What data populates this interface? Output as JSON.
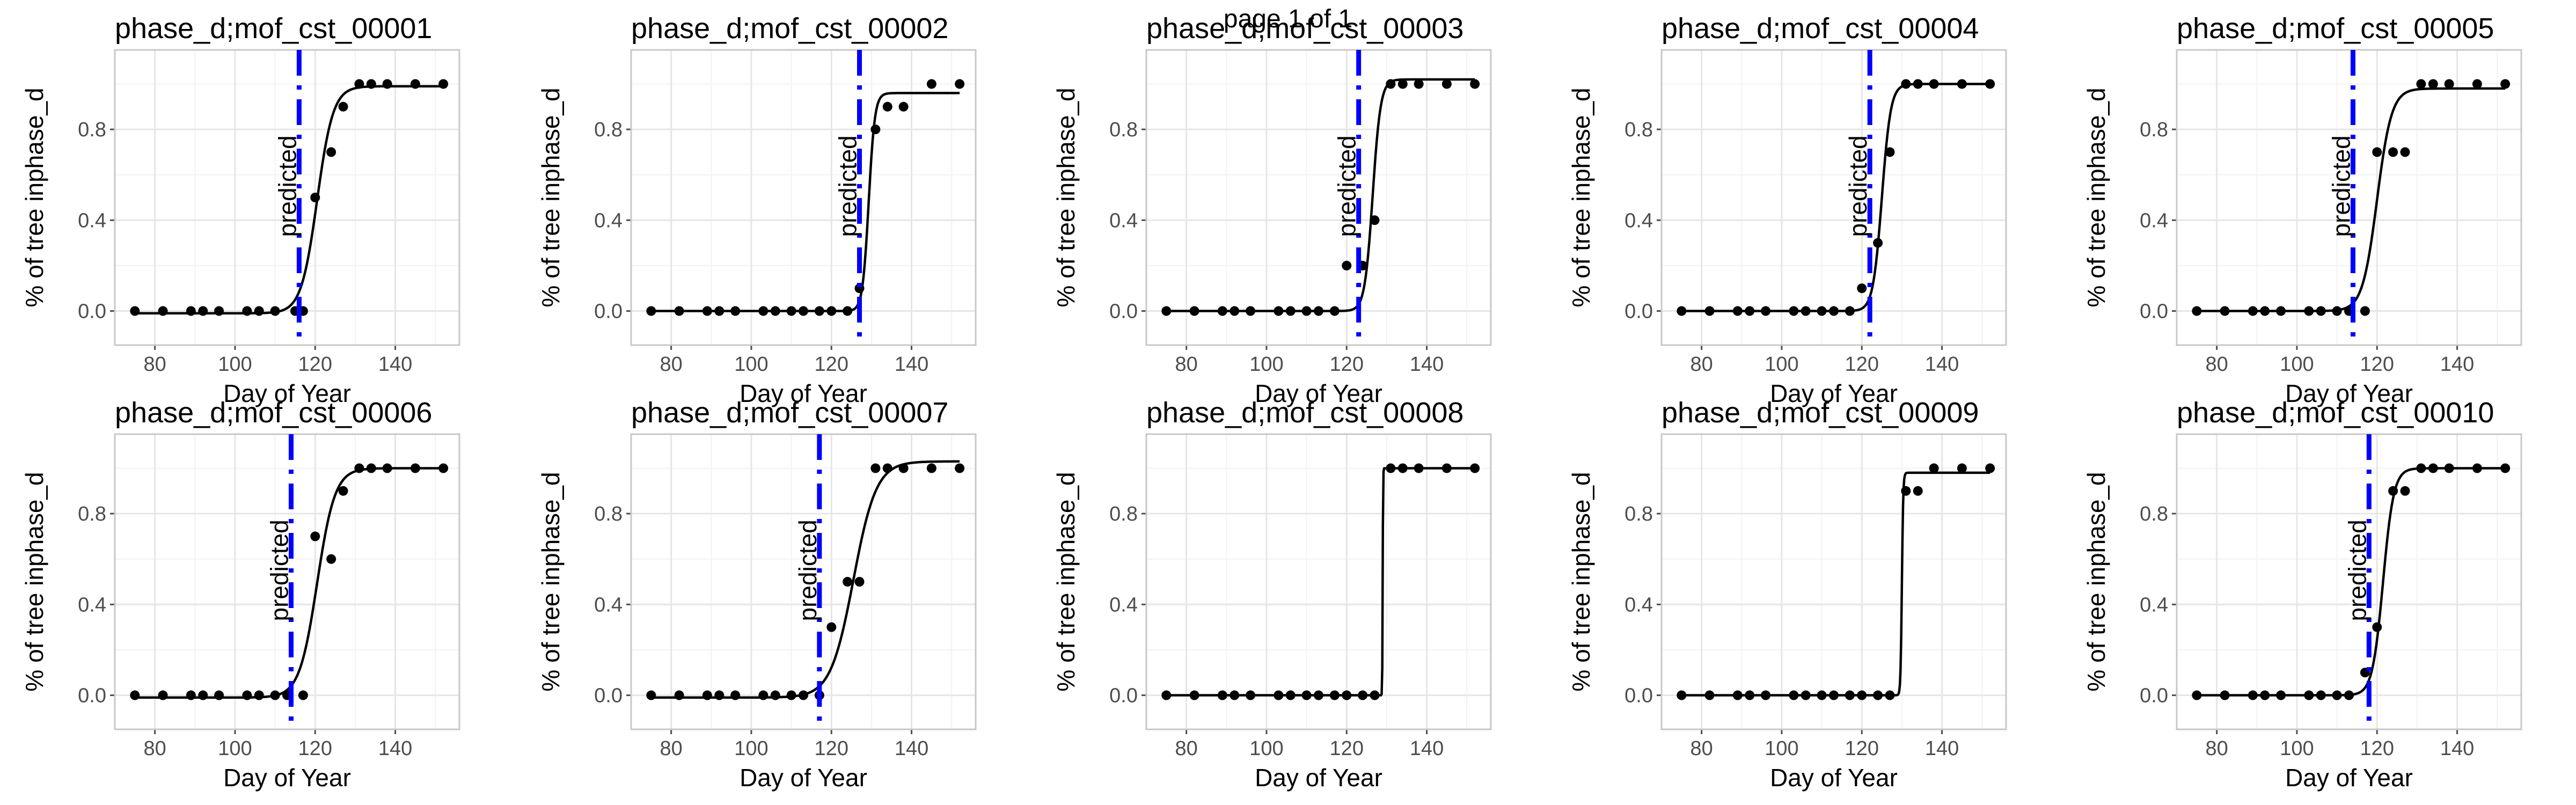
{
  "page_title": "page 1 of 1",
  "colors": {
    "predicted_line": "#0000ff",
    "points": "#000000",
    "fit": "#000000"
  },
  "chart_data": [
    {
      "type": "scatter",
      "title": "phase_d;mof_cst_00001",
      "xlabel": "Day of Year",
      "ylabel": "% of tree inphase_d",
      "xlim": [
        70,
        156
      ],
      "ylim": [
        -0.15,
        1.15
      ],
      "xticks": [
        80,
        100,
        120,
        140
      ],
      "yticks": [
        0.0,
        0.4,
        0.8
      ],
      "grid": true,
      "x": [
        75,
        82,
        89,
        92,
        96,
        103,
        106,
        110,
        115,
        117,
        120,
        124,
        127,
        131,
        134,
        138,
        145,
        152
      ],
      "y": [
        0,
        0,
        0,
        0,
        0,
        0,
        0,
        0,
        0,
        0,
        0.5,
        0.7,
        0.9,
        1.0,
        1.0,
        1.0,
        1.0,
        1.0
      ],
      "fit": {
        "L": 1.0,
        "x0": 120.5,
        "k": 0.5,
        "b": -0.01
      },
      "predicted": 116,
      "predicted_label": "predicted"
    },
    {
      "type": "scatter",
      "title": "phase_d;mof_cst_00002",
      "xlabel": "Day of Year",
      "ylabel": "% of tree inphase_d",
      "xlim": [
        70,
        156
      ],
      "ylim": [
        -0.15,
        1.15
      ],
      "xticks": [
        80,
        100,
        120,
        140
      ],
      "yticks": [
        0.0,
        0.4,
        0.8
      ],
      "grid": true,
      "x": [
        75,
        82,
        89,
        92,
        96,
        103,
        106,
        110,
        113,
        117,
        120,
        124,
        127,
        131,
        134,
        138,
        145,
        152
      ],
      "y": [
        0,
        0,
        0,
        0,
        0,
        0,
        0,
        0,
        0,
        0,
        0,
        0,
        0.1,
        0.8,
        0.9,
        0.9,
        1.0,
        1.0
      ],
      "fit": {
        "L": 0.96,
        "x0": 129.3,
        "k": 1.3,
        "b": 0.0
      },
      "predicted": 127,
      "predicted_label": "predicted"
    },
    {
      "type": "scatter",
      "title": "phase_d;mof_cst_00003",
      "xlabel": "Day of Year",
      "ylabel": "% of tree inphase_d",
      "xlim": [
        70,
        156
      ],
      "ylim": [
        -0.15,
        1.15
      ],
      "xticks": [
        80,
        100,
        120,
        140
      ],
      "yticks": [
        0.0,
        0.4,
        0.8
      ],
      "grid": true,
      "x": [
        75,
        82,
        89,
        92,
        96,
        103,
        106,
        110,
        113,
        117,
        120,
        124,
        127,
        131,
        134,
        138,
        145,
        152
      ],
      "y": [
        0,
        0,
        0,
        0,
        0,
        0,
        0,
        0,
        0,
        0,
        0.2,
        0.2,
        0.4,
        1.0,
        1.0,
        1.0,
        1.0,
        1.0
      ],
      "fit": {
        "L": 1.02,
        "x0": 126.5,
        "k": 1.0,
        "b": 0.0
      },
      "predicted": 123,
      "predicted_label": "predicted"
    },
    {
      "type": "scatter",
      "title": "phase_d;mof_cst_00004",
      "xlabel": "Day of Year",
      "ylabel": "% of tree inphase_d",
      "xlim": [
        70,
        156
      ],
      "ylim": [
        -0.15,
        1.15
      ],
      "xticks": [
        80,
        100,
        120,
        140
      ],
      "yticks": [
        0.0,
        0.4,
        0.8
      ],
      "grid": true,
      "x": [
        75,
        82,
        89,
        92,
        96,
        103,
        106,
        110,
        113,
        117,
        120,
        124,
        127,
        131,
        134,
        138,
        145,
        152
      ],
      "y": [
        0,
        0,
        0,
        0,
        0,
        0,
        0,
        0,
        0,
        0,
        0.1,
        0.3,
        0.7,
        1.0,
        1.0,
        1.0,
        1.0,
        1.0
      ],
      "fit": {
        "L": 1.0,
        "x0": 125,
        "k": 0.9,
        "b": 0.0
      },
      "predicted": 122,
      "predicted_label": "predicted"
    },
    {
      "type": "scatter",
      "title": "phase_d;mof_cst_00005",
      "xlabel": "Day of Year",
      "ylabel": "% of tree inphase_d",
      "xlim": [
        70,
        156
      ],
      "ylim": [
        -0.15,
        1.15
      ],
      "xticks": [
        80,
        100,
        120,
        140
      ],
      "yticks": [
        0.0,
        0.4,
        0.8
      ],
      "grid": true,
      "x": [
        75,
        82,
        89,
        92,
        96,
        103,
        106,
        110,
        113,
        117,
        120,
        124,
        127,
        131,
        134,
        138,
        145,
        152
      ],
      "y": [
        0,
        0,
        0,
        0,
        0,
        0,
        0,
        0,
        0,
        0,
        0.7,
        0.7,
        0.7,
        1.0,
        1.0,
        1.0,
        1.0,
        1.0
      ],
      "fit": {
        "L": 0.98,
        "x0": 120,
        "k": 0.55,
        "b": 0.0
      },
      "predicted": 114,
      "predicted_label": "predicted"
    },
    {
      "type": "scatter",
      "title": "phase_d;mof_cst_00006",
      "xlabel": "Day of Year",
      "ylabel": "% of tree inphase_d",
      "xlim": [
        70,
        156
      ],
      "ylim": [
        -0.15,
        1.15
      ],
      "xticks": [
        80,
        100,
        120,
        140
      ],
      "yticks": [
        0.0,
        0.4,
        0.8
      ],
      "grid": true,
      "x": [
        75,
        82,
        89,
        92,
        96,
        103,
        106,
        110,
        113,
        117,
        120,
        124,
        127,
        131,
        134,
        138,
        145,
        152
      ],
      "y": [
        0,
        0,
        0,
        0,
        0,
        0,
        0,
        0,
        0,
        0,
        0.7,
        0.6,
        0.9,
        1.0,
        1.0,
        1.0,
        1.0,
        1.0
      ],
      "fit": {
        "L": 1.01,
        "x0": 120.5,
        "k": 0.45,
        "b": -0.01
      },
      "predicted": 114,
      "predicted_label": "predicted"
    },
    {
      "type": "scatter",
      "title": "phase_d;mof_cst_00007",
      "xlabel": "Day of Year",
      "ylabel": "% of tree inphase_d",
      "xlim": [
        70,
        156
      ],
      "ylim": [
        -0.15,
        1.15
      ],
      "xticks": [
        80,
        100,
        120,
        140
      ],
      "yticks": [
        0.0,
        0.4,
        0.8
      ],
      "grid": true,
      "x": [
        75,
        82,
        89,
        92,
        96,
        103,
        106,
        110,
        113,
        117,
        120,
        124,
        127,
        131,
        134,
        138,
        145,
        152
      ],
      "y": [
        0,
        0,
        0,
        0,
        0,
        0,
        0,
        0,
        0,
        0,
        0.3,
        0.5,
        0.5,
        1.0,
        1.0,
        1.0,
        1.0,
        1.0
      ],
      "fit": {
        "L": 1.04,
        "x0": 125.5,
        "k": 0.35,
        "b": -0.01
      },
      "predicted": 117,
      "predicted_label": "predicted"
    },
    {
      "type": "scatter",
      "title": "phase_d;mof_cst_00008",
      "xlabel": "Day of Year",
      "ylabel": "% of tree inphase_d",
      "xlim": [
        70,
        156
      ],
      "ylim": [
        -0.15,
        1.15
      ],
      "xticks": [
        80,
        100,
        120,
        140
      ],
      "yticks": [
        0.0,
        0.4,
        0.8
      ],
      "grid": true,
      "x": [
        75,
        82,
        89,
        92,
        96,
        103,
        106,
        110,
        113,
        117,
        120,
        124,
        127,
        131,
        134,
        138,
        145,
        152
      ],
      "y": [
        0,
        0,
        0,
        0,
        0,
        0,
        0,
        0,
        0,
        0,
        0,
        0,
        0,
        1.0,
        1.0,
        1.0,
        1.0,
        1.0
      ],
      "fit": {
        "L": 1.0,
        "x0": 129,
        "k": 20,
        "b": 0.0
      },
      "predicted": null,
      "predicted_label": ""
    },
    {
      "type": "scatter",
      "title": "phase_d;mof_cst_00009",
      "xlabel": "Day of Year",
      "ylabel": "% of tree inphase_d",
      "xlim": [
        70,
        156
      ],
      "ylim": [
        -0.15,
        1.15
      ],
      "xticks": [
        80,
        100,
        120,
        140
      ],
      "yticks": [
        0.0,
        0.4,
        0.8
      ],
      "grid": true,
      "x": [
        75,
        82,
        89,
        92,
        96,
        103,
        106,
        110,
        113,
        117,
        120,
        124,
        127,
        131,
        134,
        138,
        145,
        152
      ],
      "y": [
        0,
        0,
        0,
        0,
        0,
        0,
        0,
        0,
        0,
        0,
        0,
        0,
        0,
        0.9,
        0.9,
        1.0,
        1.0,
        1.0
      ],
      "fit": {
        "L": 0.98,
        "x0": 130,
        "k": 6,
        "b": 0.0
      },
      "predicted": null,
      "predicted_label": ""
    },
    {
      "type": "scatter",
      "title": "phase_d;mof_cst_00010",
      "xlabel": "Day of Year",
      "ylabel": "% of tree inphase_d",
      "xlim": [
        70,
        156
      ],
      "ylim": [
        -0.15,
        1.15
      ],
      "xticks": [
        80,
        100,
        120,
        140
      ],
      "yticks": [
        0.0,
        0.4,
        0.8
      ],
      "grid": true,
      "x": [
        75,
        82,
        89,
        92,
        96,
        103,
        106,
        110,
        113,
        117,
        120,
        124,
        127,
        131,
        134,
        138,
        145,
        152
      ],
      "y": [
        0,
        0,
        0,
        0,
        0,
        0,
        0,
        0,
        0,
        0.1,
        0.3,
        0.9,
        0.9,
        1.0,
        1.0,
        1.0,
        1.0,
        1.0
      ],
      "fit": {
        "L": 1.0,
        "x0": 121.5,
        "k": 0.75,
        "b": 0.0
      },
      "predicted": 118,
      "predicted_label": "predicted"
    }
  ]
}
